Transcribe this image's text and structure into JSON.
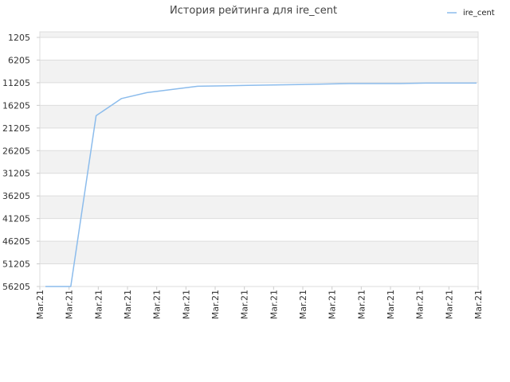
{
  "chart_data": {
    "type": "line",
    "title": "История рейтинга для ire_cent",
    "xlabel": "",
    "ylabel": "",
    "legend_position": "top-right",
    "grid": true,
    "y_inverted": true,
    "ylim": [
      1205,
      56205
    ],
    "y_ticks": [
      "1205",
      "6205",
      "11205",
      "16205",
      "21205",
      "26205",
      "31205",
      "36205",
      "41205",
      "46205",
      "51205",
      "56205"
    ],
    "x_ticks": [
      "Mar.21",
      "Mar.21",
      "Mar.21",
      "Mar.21",
      "Mar.21",
      "Mar.21",
      "Mar.21",
      "Mar.21",
      "Mar.21",
      "Mar.21",
      "Mar.21",
      "Mar.21",
      "Mar.21",
      "Mar.21",
      "Mar.21",
      "Mar.21"
    ],
    "series": [
      {
        "name": "ire_cent",
        "color": "#8cbcec",
        "values": [
          56205,
          56205,
          18500,
          14700,
          13400,
          12700,
          12000,
          11900,
          11800,
          11700,
          11600,
          11500,
          11400,
          11400,
          11400,
          11300,
          11300,
          11300
        ]
      }
    ],
    "colors": {
      "band": "#f2f2f2",
      "grid": "#dddddd",
      "line": "#8cbcec"
    }
  }
}
